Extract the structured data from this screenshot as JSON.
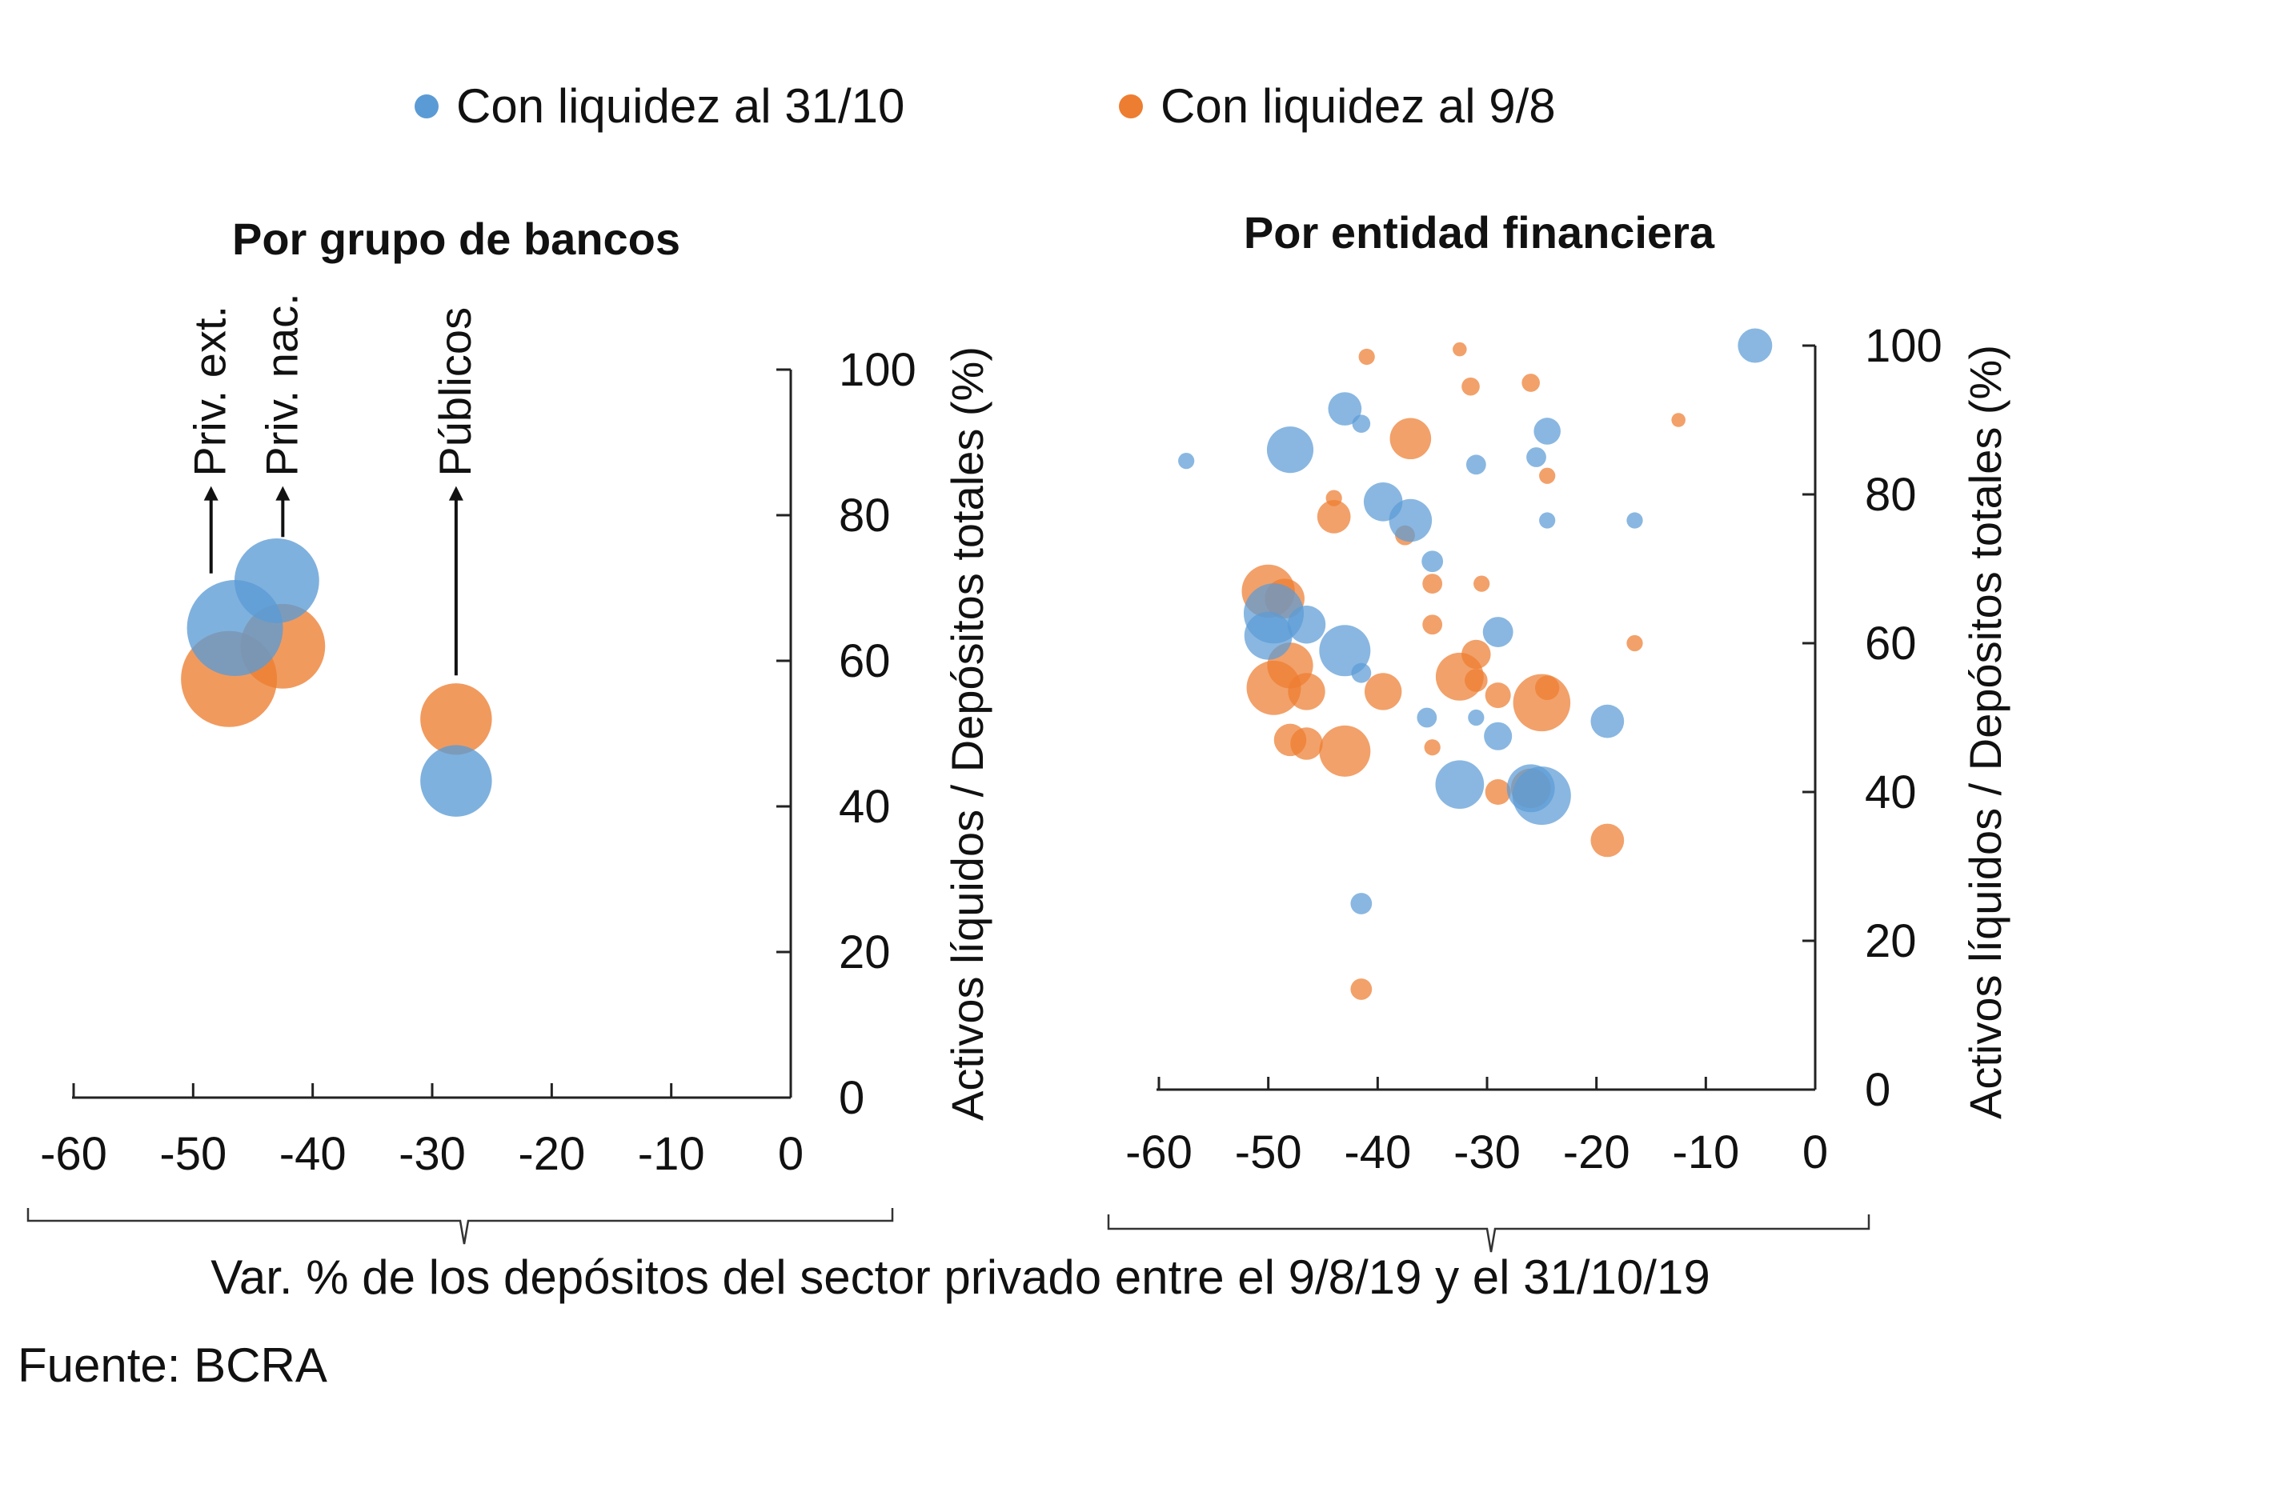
{
  "colors": {
    "series_oct": "#5b9bd5",
    "series_aug": "#ed7d31"
  },
  "legend": {
    "oct_label": "Con liquidez al 31/10",
    "aug_label": "Con liquidez al 9/8"
  },
  "x_axis_label": "Var. % de los depósitos del sector privado entre el 9/8/19 y el 31/10/19",
  "source": "Fuente: BCRA",
  "chart_data": [
    {
      "type": "scatter",
      "title": "Por grupo de bancos",
      "ylabel": "Activos líquidos / Depósitos totales (%)",
      "xlim": [
        -60,
        0
      ],
      "ylim": [
        0,
        100
      ],
      "xticks": [
        "-60",
        "-50",
        "-40",
        "-30",
        "-20",
        "-10",
        "0"
      ],
      "yticks": [
        "0",
        "20",
        "40",
        "60",
        "80",
        "100"
      ],
      "annotations": [
        {
          "label": "Priv. ext.",
          "x": -48.5,
          "y_start": 72,
          "y_end": 84
        },
        {
          "label": "Priv. nac.",
          "x": -42.5,
          "y_start": 77,
          "y_end": 84
        },
        {
          "label": "Públicos",
          "x": -28,
          "y_start": 58,
          "y_end": 84
        }
      ],
      "series": [
        {
          "name": "Con liquidez al 31/10",
          "points": [
            {
              "group": "Priv. ext.",
              "x": -46.5,
              "y": 64.5,
              "size": 9
            },
            {
              "group": "Priv. nac.",
              "x": -43,
              "y": 71,
              "size": 7
            },
            {
              "group": "Públicos",
              "x": -28,
              "y": 43.5,
              "size": 5
            }
          ]
        },
        {
          "name": "Con liquidez al 9/8",
          "points": [
            {
              "group": "Priv. ext.",
              "x": -47,
              "y": 57.5,
              "size": 9
            },
            {
              "group": "Priv. nac.",
              "x": -42.5,
              "y": 62,
              "size": 7
            },
            {
              "group": "Públicos",
              "x": -28,
              "y": 52,
              "size": 5
            }
          ]
        }
      ]
    },
    {
      "type": "scatter",
      "title": "Por entidad financiera",
      "ylabel": "Activos líquidos / Depósitos totales (%)",
      "xlim": [
        -60,
        0
      ],
      "ylim": [
        0,
        100
      ],
      "xticks": [
        "-60",
        "-50",
        "-40",
        "-30",
        "-20",
        "-10",
        "0"
      ],
      "yticks": [
        "0",
        "20",
        "40",
        "60",
        "80",
        "100"
      ],
      "series": [
        {
          "name": "Con liquidez al 31/10",
          "points": [
            {
              "x": -5.5,
              "y": 100,
              "size": 1.8
            },
            {
              "x": -57.5,
              "y": 84.5,
              "size": 0.4
            },
            {
              "x": -48,
              "y": 86,
              "size": 3.3
            },
            {
              "x": -43,
              "y": 91.5,
              "size": 1.7
            },
            {
              "x": -41.5,
              "y": 89.5,
              "size": 0.5
            },
            {
              "x": -39.5,
              "y": 79,
              "size": 2.3
            },
            {
              "x": -37,
              "y": 76.5,
              "size": 2.8
            },
            {
              "x": -35,
              "y": 71,
              "size": 0.7
            },
            {
              "x": -31,
              "y": 84,
              "size": 0.6
            },
            {
              "x": -25.5,
              "y": 85,
              "size": 0.6
            },
            {
              "x": -24.5,
              "y": 88.5,
              "size": 1.1
            },
            {
              "x": -24.5,
              "y": 76.5,
              "size": 0.4
            },
            {
              "x": -16.5,
              "y": 76.5,
              "size": 0.4
            },
            {
              "x": -49.5,
              "y": 64,
              "size": 5.5
            },
            {
              "x": -50,
              "y": 61,
              "size": 3.5
            },
            {
              "x": -46.5,
              "y": 62.5,
              "size": 2.2
            },
            {
              "x": -43,
              "y": 59,
              "size": 4
            },
            {
              "x": -41.5,
              "y": 56,
              "size": 0.6
            },
            {
              "x": -35.5,
              "y": 50,
              "size": 0.6
            },
            {
              "x": -29,
              "y": 61.5,
              "size": 1.4
            },
            {
              "x": -31,
              "y": 50,
              "size": 0.4
            },
            {
              "x": -29,
              "y": 47.5,
              "size": 1.2
            },
            {
              "x": -32.5,
              "y": 41,
              "size": 3.6
            },
            {
              "x": -26,
              "y": 40.5,
              "size": 3.5
            },
            {
              "x": -25,
              "y": 39.5,
              "size": 5.2
            },
            {
              "x": -19,
              "y": 49.5,
              "size": 1.7
            },
            {
              "x": -41.5,
              "y": 25,
              "size": 0.7
            }
          ]
        },
        {
          "name": "Con liquidez al 9/8",
          "points": [
            {
              "x": -41,
              "y": 98.5,
              "size": 0.4
            },
            {
              "x": -32.5,
              "y": 99.5,
              "size": 0.3
            },
            {
              "x": -31.5,
              "y": 94.5,
              "size": 0.5
            },
            {
              "x": -26,
              "y": 95,
              "size": 0.5
            },
            {
              "x": -12.5,
              "y": 90,
              "size": 0.3
            },
            {
              "x": -37,
              "y": 87.5,
              "size": 2.6
            },
            {
              "x": -44,
              "y": 77,
              "size": 1.7
            },
            {
              "x": -44,
              "y": 79.5,
              "size": 0.4
            },
            {
              "x": -37.5,
              "y": 74.5,
              "size": 0.6
            },
            {
              "x": -35,
              "y": 68,
              "size": 0.6
            },
            {
              "x": -30.5,
              "y": 68,
              "size": 0.4
            },
            {
              "x": -24.5,
              "y": 82.5,
              "size": 0.4
            },
            {
              "x": -16.5,
              "y": 60,
              "size": 0.4
            },
            {
              "x": -50,
              "y": 67,
              "size": 4.3
            },
            {
              "x": -48.5,
              "y": 66,
              "size": 2.4
            },
            {
              "x": -48,
              "y": 57,
              "size": 3.2
            },
            {
              "x": -46.5,
              "y": 53.5,
              "size": 2.1
            },
            {
              "x": -49.5,
              "y": 54,
              "size": 4.5
            },
            {
              "x": -43,
              "y": 45.5,
              "size": 4
            },
            {
              "x": -48,
              "y": 47,
              "size": 1.6
            },
            {
              "x": -46.5,
              "y": 46.5,
              "size": 1.6
            },
            {
              "x": -39.5,
              "y": 53.5,
              "size": 2.1
            },
            {
              "x": -35,
              "y": 62.5,
              "size": 0.6
            },
            {
              "x": -31,
              "y": 58.5,
              "size": 1.3
            },
            {
              "x": -32.5,
              "y": 55.5,
              "size": 3.5
            },
            {
              "x": -31,
              "y": 55,
              "size": 0.8
            },
            {
              "x": -29,
              "y": 53,
              "size": 1
            },
            {
              "x": -25,
              "y": 52,
              "size": 5
            },
            {
              "x": -24.5,
              "y": 54,
              "size": 0.9
            },
            {
              "x": -35,
              "y": 46,
              "size": 0.4
            },
            {
              "x": -29,
              "y": 40,
              "size": 1
            },
            {
              "x": -26,
              "y": 40.5,
              "size": 2.4
            },
            {
              "x": -19,
              "y": 33.5,
              "size": 1.7
            },
            {
              "x": -41.5,
              "y": 13.5,
              "size": 0.7
            }
          ]
        }
      ]
    }
  ]
}
